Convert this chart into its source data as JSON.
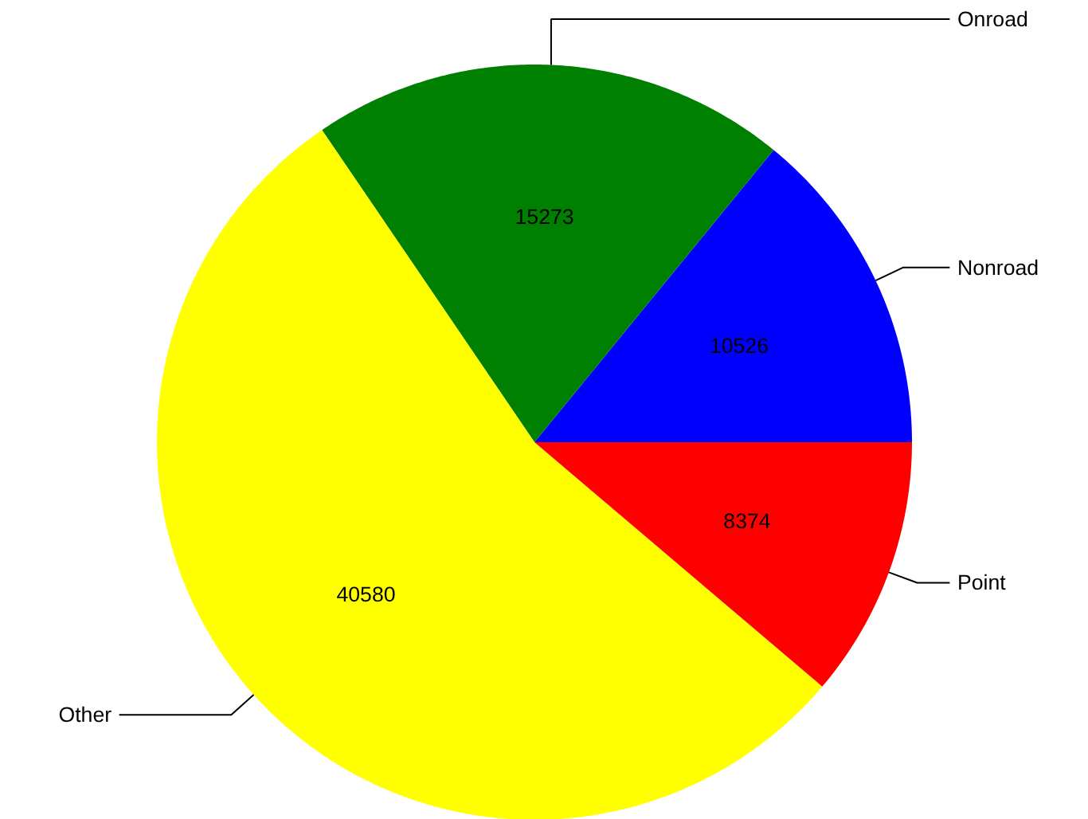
{
  "chart_data": {
    "type": "pie",
    "categories": [
      "Nonroad",
      "Onroad",
      "Other",
      "Point"
    ],
    "values": [
      10526,
      15273,
      40580,
      8374
    ],
    "colors": [
      "#0000ff",
      "#008000",
      "#ffff00",
      "#ff0000"
    ],
    "data_labels": true
  }
}
